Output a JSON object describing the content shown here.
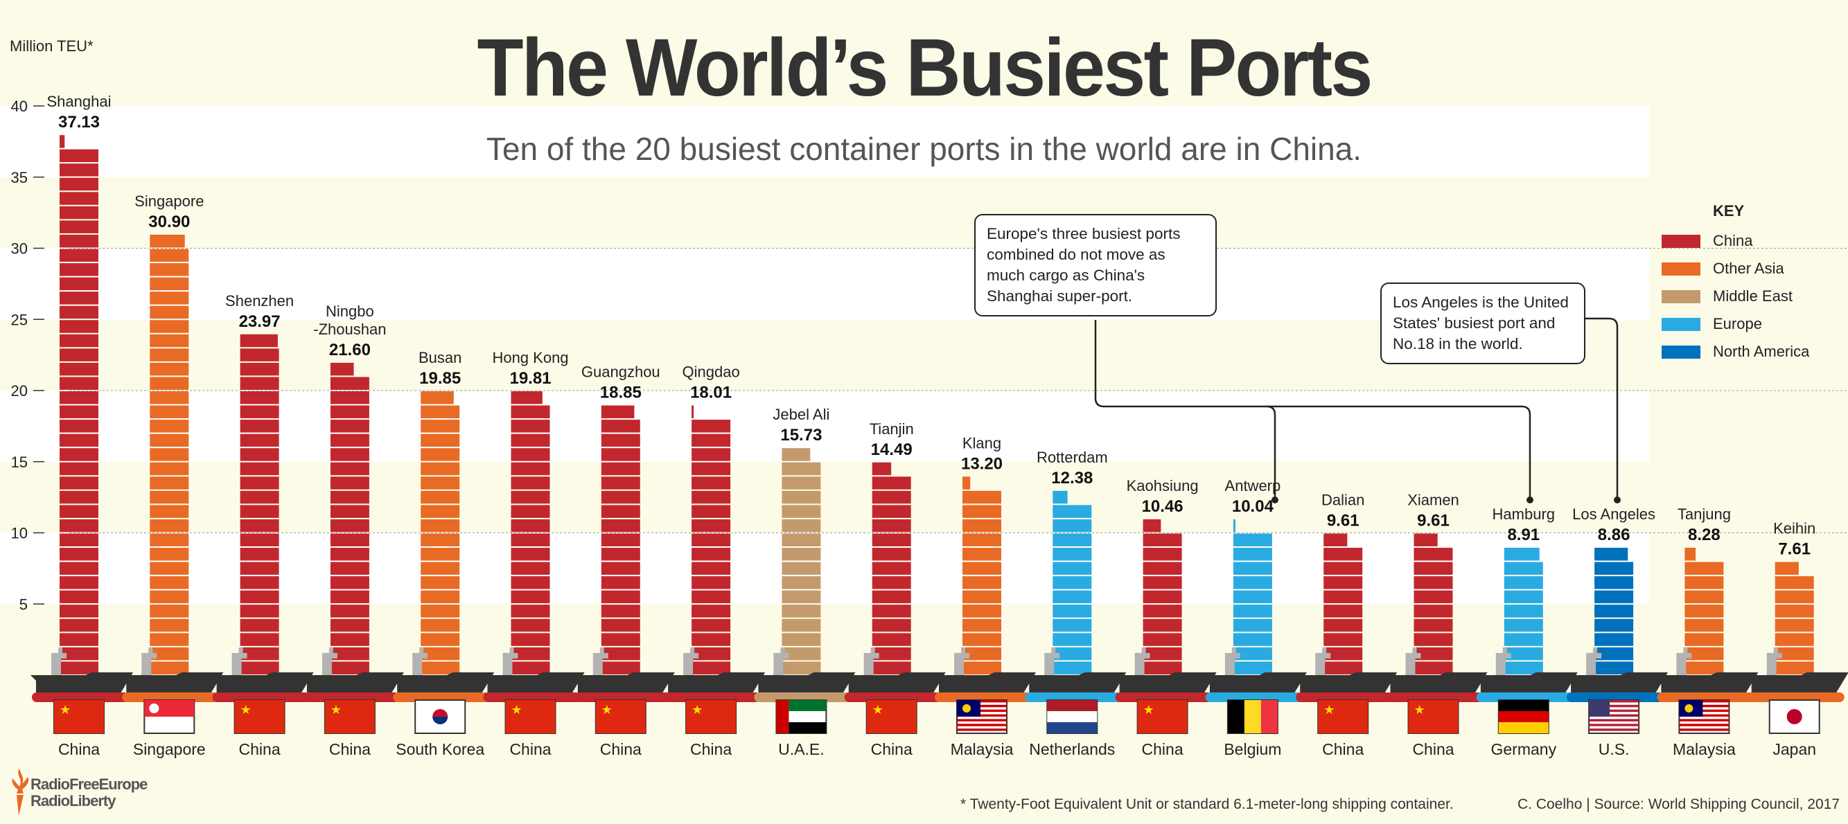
{
  "title": "The World’s Busiest Ports",
  "subtitle": "Ten of the 20 busiest container ports in the world are in China.",
  "unit_label": "Million TEU*",
  "colors": {
    "China": "#c1272d",
    "Other Asia": "#e86a24",
    "Middle East": "#c49a6c",
    "Europe": "#29abe2",
    "North America": "#0071bc",
    "hull": "#333333",
    "crane": "#b3b3b3"
  },
  "key": {
    "title": "KEY",
    "items": [
      "China",
      "Other Asia",
      "Middle East",
      "Europe",
      "North America"
    ]
  },
  "callouts": {
    "europe": "Europe's three busiest ports combined do not move as much cargo as China's Shanghai super-port.",
    "la": "Los Angeles is the United States' busiest port and No.18 in the world."
  },
  "footnote": "* Twenty-Foot Equivalent Unit or standard 6.1-meter-long shipping container.",
  "credit": "C. Coelho | Source: World Shipping Council, 2017",
  "logo": {
    "line1": "RadioFreeEurope",
    "line2": "RadioLiberty"
  },
  "chart_data": {
    "type": "bar",
    "ylabel": "Million TEU*",
    "ylim": [
      0,
      40
    ],
    "yticks": [
      5,
      10,
      15,
      20,
      25,
      30,
      35,
      40
    ],
    "categories": [
      "Shanghai",
      "Singapore",
      "Shenzhen",
      "Ningbo -Zhoushan",
      "Busan",
      "Hong Kong",
      "Guangzhou",
      "Qingdao",
      "Jebel Ali",
      "Tianjin",
      "Klang",
      "Rotterdam",
      "Kaohsiung",
      "Antwerp",
      "Dalian",
      "Xiamen",
      "Hamburg",
      "Los Angeles",
      "Tanjung",
      "Keihin"
    ],
    "values": [
      37.13,
      30.9,
      23.97,
      21.6,
      19.85,
      19.81,
      18.85,
      18.01,
      15.73,
      14.49,
      13.2,
      12.38,
      10.46,
      10.04,
      9.61,
      9.61,
      8.91,
      8.86,
      8.28,
      7.61
    ],
    "value_labels": [
      "37.13",
      "30.90",
      "23.97",
      "21.60",
      "19.85",
      "19.81",
      "18.85",
      "18.01",
      "15.73",
      "14.49",
      "13.20",
      "12.38",
      "10.46",
      "10.04",
      "9.61",
      "9.61",
      "8.91",
      "8.86",
      "8.28",
      "7.61"
    ],
    "countries": [
      "China",
      "Singapore",
      "China",
      "China",
      "South Korea",
      "China",
      "China",
      "China",
      "U.A.E.",
      "China",
      "Malaysia",
      "Netherlands",
      "China",
      "Belgium",
      "China",
      "China",
      "Germany",
      "U.S.",
      "Malaysia",
      "Japan"
    ],
    "regions": [
      "China",
      "Other Asia",
      "China",
      "China",
      "Other Asia",
      "China",
      "China",
      "China",
      "Middle East",
      "China",
      "Other Asia",
      "Europe",
      "China",
      "Europe",
      "China",
      "China",
      "Europe",
      "North America",
      "Other Asia",
      "Japan-Other Asia"
    ]
  }
}
